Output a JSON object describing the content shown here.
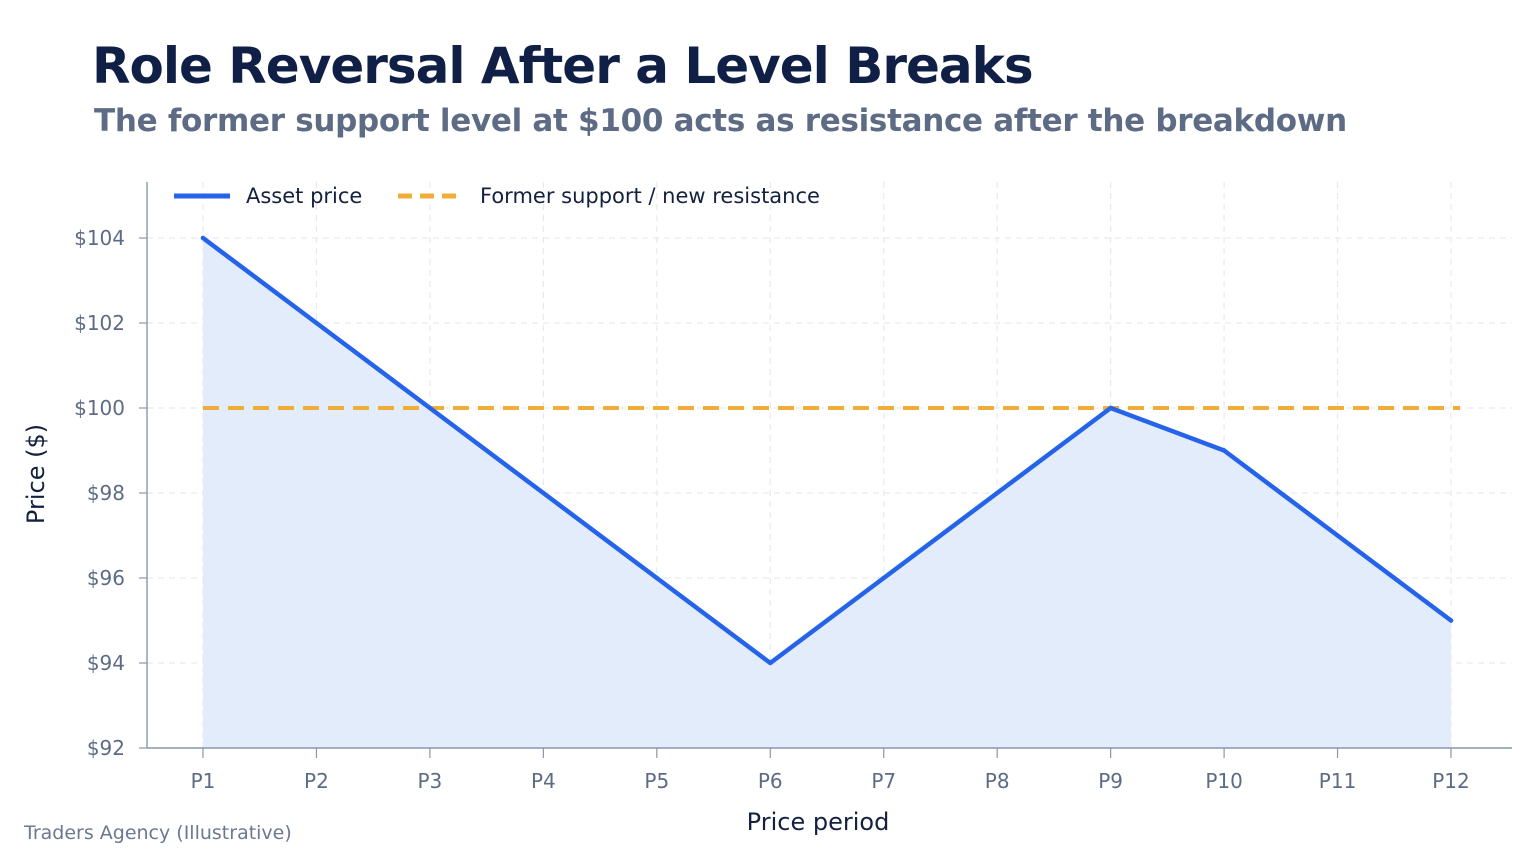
{
  "header": {
    "title": "Role Reversal After a Level Breaks",
    "subtitle": "The former support level at $100 acts as resistance after the breakdown"
  },
  "footer": {
    "source": "Traders Agency (Illustrative)"
  },
  "chart_data": {
    "type": "line",
    "title": "Role Reversal After a Level Breaks",
    "subtitle": "The former support level at $100 acts as resistance after the breakdown",
    "xlabel": "Price period",
    "ylabel": "Price ($)",
    "categories": [
      "P1",
      "P2",
      "P3",
      "P4",
      "P5",
      "P6",
      "P7",
      "P8",
      "P9",
      "P10",
      "P11",
      "P12"
    ],
    "ylim": [
      92,
      104
    ],
    "yticks": [
      92,
      94,
      96,
      98,
      100,
      102,
      104
    ],
    "ytick_labels": [
      "$92",
      "$94",
      "$96",
      "$98",
      "$100",
      "$102",
      "$104"
    ],
    "grid": true,
    "legend_position": "top-left",
    "series": [
      {
        "name": "Asset price",
        "style": "solid-with-area",
        "color": "#2563eb",
        "area_color": "#e3ecfb",
        "values": [
          104,
          102,
          100,
          98,
          96,
          94,
          96,
          98,
          100,
          99,
          97,
          95
        ]
      },
      {
        "name": "Former support / new resistance",
        "style": "dashed",
        "color": "#f0ad3a",
        "values": [
          100,
          100,
          100,
          100,
          100,
          100,
          100,
          100,
          100,
          100,
          100,
          100
        ]
      }
    ],
    "colors": {
      "axis": "#8a96ad",
      "grid": "#e6e9ef"
    }
  }
}
